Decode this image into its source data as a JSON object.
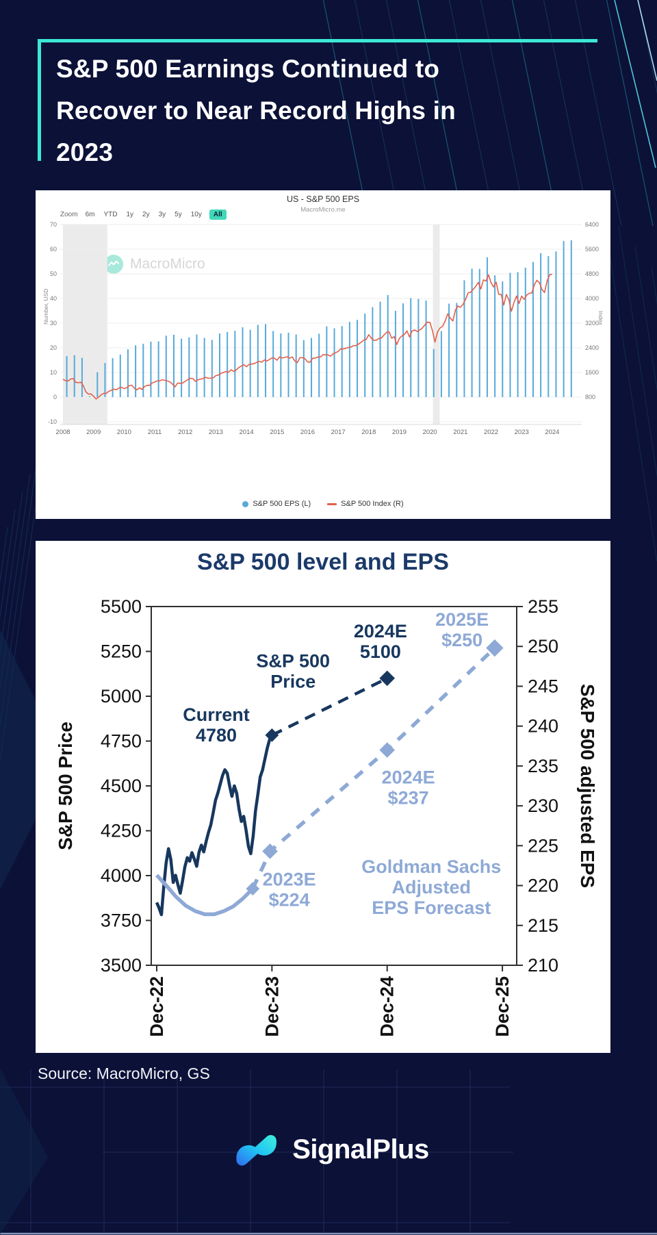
{
  "page": {
    "title_lines": [
      "S&P 500 Earnings Continued to",
      "Recover to Near Record Highs in",
      "2023"
    ],
    "brand": "SignalPlus"
  },
  "footer": {
    "source": "Source: MacroMicro, GS"
  },
  "colors": {
    "background": "#0c1138",
    "accent_teal": "#3ce8d4",
    "panel": "#ffffff",
    "bar_blue": "#57a9da",
    "line_red": "#e2604c",
    "navy": "#17375e",
    "light_blue": "#8ea9d6",
    "recession_band": "#ebebeb",
    "gridline": "#ececec"
  },
  "chart_data": [
    {
      "type": "bar+line",
      "title": "US - S&P 500 EPS",
      "subtitle": "MacroMicro.me",
      "watermark": "MacroMicro",
      "toolbar": {
        "label": "Zoom",
        "items": [
          "6m",
          "YTD",
          "1y",
          "2y",
          "3y",
          "5y",
          "10y",
          "All"
        ],
        "active": "All"
      },
      "left_axis": {
        "title": "Number, USD",
        "ticks": [
          70,
          60,
          50,
          40,
          30,
          20,
          10,
          0,
          -10
        ]
      },
      "right_axis": {
        "title": "Index",
        "ticks": [
          6400,
          5600,
          4800,
          4000,
          3200,
          2400,
          1600,
          800
        ]
      },
      "x_axis": {
        "years": [
          2008,
          2009,
          2010,
          2011,
          2012,
          2013,
          2014,
          2015,
          2016,
          2017,
          2018,
          2019,
          2020,
          2021,
          2022,
          2023,
          2024
        ]
      },
      "recession_bands": [
        [
          2008.0,
          2009.45
        ],
        [
          2020.1,
          2020.32
        ]
      ],
      "series": [
        {
          "name": "S&P 500 EPS (L)",
          "type": "bar",
          "axis": "left",
          "start_year": 2008.125,
          "step_years": 0.25,
          "values": [
            16.6,
            17.0,
            15.9,
            0.3,
            10.1,
            13.8,
            15.8,
            17.2,
            19.4,
            21.0,
            21.6,
            22.5,
            22.6,
            24.9,
            25.3,
            23.7,
            24.2,
            25.4,
            24.0,
            23.2,
            25.8,
            26.4,
            26.9,
            28.3,
            27.3,
            29.3,
            29.6,
            26.8,
            25.8,
            26.1,
            25.4,
            23.1,
            24.0,
            25.7,
            28.7,
            27.9,
            28.8,
            30.5,
            31.3,
            33.9,
            36.5,
            38.7,
            41.4,
            35.0,
            38.0,
            40.1,
            39.8,
            39.2,
            19.5,
            26.8,
            37.9,
            38.2,
            47.4,
            52.1,
            52.0,
            56.7,
            49.4,
            46.9,
            50.4,
            50.7,
            52.5,
            54.8,
            58.4,
            57.2,
            59.1,
            63.3,
            63.6
          ]
        },
        {
          "name": "S&P 500 Index (R)",
          "type": "line",
          "axis": "right",
          "start_year": 2008.0,
          "step_years": 0.08333,
          "values": [
            1379,
            1331,
            1323,
            1386,
            1400,
            1280,
            1267,
            1283,
            1166,
            969,
            896,
            903,
            826,
            735,
            798,
            873,
            919,
            919,
            987,
            1021,
            1057,
            1036,
            1096,
            1115,
            1074,
            1104,
            1169,
            1187,
            1089,
            1031,
            1102,
            1049,
            1141,
            1183,
            1181,
            1258,
            1286,
            1327,
            1326,
            1364,
            1345,
            1321,
            1292,
            1219,
            1131,
            1253,
            1247,
            1258,
            1312,
            1366,
            1408,
            1398,
            1310,
            1362,
            1379,
            1407,
            1441,
            1412,
            1416,
            1426,
            1498,
            1515,
            1569,
            1598,
            1631,
            1606,
            1686,
            1633,
            1682,
            1757,
            1806,
            1848,
            1783,
            1859,
            1872,
            1884,
            1924,
            1960,
            1931,
            2003,
            1972,
            2018,
            2068,
            2059,
            1995,
            2105,
            2068,
            2086,
            2107,
            2063,
            2104,
            1972,
            1920,
            2079,
            2080,
            2044,
            1940,
            1932,
            2060,
            2065,
            2097,
            2099,
            2174,
            2171,
            2168,
            2126,
            2199,
            2239,
            2279,
            2364,
            2363,
            2384,
            2412,
            2423,
            2470,
            2472,
            2519,
            2575,
            2648,
            2674,
            2824,
            2714,
            2641,
            2648,
            2705,
            2718,
            2816,
            2902,
            2914,
            2712,
            2760,
            2507,
            2704,
            2784,
            2834,
            2946,
            2752,
            2942,
            2980,
            2926,
            2977,
            3038,
            3141,
            3231,
            3226,
            2954,
            2585,
            2912,
            3044,
            3100,
            3271,
            3500,
            3363,
            3270,
            3622,
            3756,
            3714,
            3811,
            3973,
            4181,
            4204,
            4298,
            4395,
            4523,
            4308,
            4605,
            4567,
            4766,
            4516,
            4374,
            4530,
            4132,
            4132,
            3785,
            4130,
            3955,
            3586,
            3872,
            4080,
            3840,
            4077,
            3970,
            4109,
            4169,
            4180,
            4450,
            4589,
            4508,
            4288,
            4194,
            4568,
            4770,
            4790
          ]
        }
      ]
    },
    {
      "type": "line",
      "title": "S&P 500 level and EPS",
      "left_axis": {
        "title": "S&P 500 Price",
        "min": 3500,
        "max": 5500,
        "ticks": [
          5500,
          5250,
          5000,
          4750,
          4500,
          4250,
          4000,
          3750,
          3500
        ]
      },
      "right_axis": {
        "title": "S&P 500 adjusted EPS",
        "min": 210,
        "max": 255,
        "ticks": [
          255,
          250,
          245,
          240,
          235,
          230,
          225,
          220,
          215,
          210
        ]
      },
      "x_axis": {
        "labels": [
          "Dec-22",
          "Dec-23",
          "Dec-24",
          "Dec-25"
        ],
        "months": [
          0,
          12,
          24,
          36
        ]
      },
      "series": [
        {
          "name": "S&P 500 Price (actual)",
          "axis": "price",
          "style": "solid",
          "color_key": "navy",
          "t_start": 0,
          "t_end": 12,
          "values": [
            3850,
            3820,
            3782,
            3938,
            4070,
            4150,
            4090,
            3962,
            4002,
            3950,
            3902,
            3972,
            4050,
            4100,
            4080,
            4128,
            4092,
            4052,
            4130,
            4170,
            4132,
            4190,
            4240,
            4282,
            4350,
            4420,
            4460,
            4510,
            4558,
            4590,
            4570,
            4500,
            4442,
            4500,
            4460,
            4370,
            4302,
            4330,
            4252,
            4163,
            4122,
            4220,
            4360,
            4450,
            4550,
            4588,
            4650,
            4710,
            4758,
            4783
          ]
        },
        {
          "name": "S&P 500 Price (forecast)",
          "axis": "price",
          "style": "dashed",
          "color_key": "navy",
          "points": [
            [
              12,
              4783
            ],
            [
              24,
              5100
            ]
          ]
        },
        {
          "name": "GS Adjusted EPS (actual)",
          "axis": "eps",
          "style": "solid",
          "color_key": "light_blue",
          "points": [
            [
              0,
              221.3
            ],
            [
              1,
              220.0
            ],
            [
              2,
              218.6
            ],
            [
              3,
              217.5
            ],
            [
              4,
              216.8
            ],
            [
              5,
              216.4
            ],
            [
              6,
              216.4
            ],
            [
              7,
              216.8
            ],
            [
              8,
              217.4
            ],
            [
              9,
              218.4
            ],
            [
              10,
              219.6
            ]
          ]
        },
        {
          "name": "GS Adjusted EPS (forecast)",
          "axis": "eps",
          "style": "dashed",
          "color_key": "light_blue",
          "points": [
            [
              10,
              219.6
            ],
            [
              11.8,
              224.3
            ],
            [
              24,
              237
            ],
            [
              35.2,
              249.8
            ]
          ]
        }
      ],
      "markers": [
        {
          "axis": "price",
          "t": 12,
          "v": 4783,
          "size": 7,
          "color_key": "navy"
        },
        {
          "axis": "price",
          "t": 24,
          "v": 5100,
          "size": 8,
          "color_key": "navy"
        },
        {
          "axis": "eps",
          "t": 10,
          "v": 219.6,
          "size": 7,
          "color_key": "light_blue"
        },
        {
          "axis": "eps",
          "t": 11.8,
          "v": 224.3,
          "size": 8,
          "color_key": "light_blue"
        },
        {
          "axis": "eps",
          "t": 24,
          "v": 237,
          "size": 8,
          "color_key": "light_blue"
        },
        {
          "axis": "eps",
          "t": 35.2,
          "v": 249.8,
          "size": 9,
          "color_key": "light_blue"
        }
      ],
      "annotations": [
        {
          "lines": [
            "S&P 500",
            "Price"
          ],
          "axis": "price",
          "t": 14.2,
          "v": 5140,
          "color_key": "navy"
        },
        {
          "lines": [
            "2024E",
            "5100"
          ],
          "axis": "price",
          "t": 23.3,
          "v": 5305,
          "color_key": "navy"
        },
        {
          "lines": [
            "Current",
            "4780"
          ],
          "axis": "price",
          "t": 6.2,
          "v": 4840,
          "color_key": "navy"
        },
        {
          "lines": [
            "2025E",
            "$250"
          ],
          "axis": "eps",
          "t": 31.8,
          "v": 252.1,
          "color_key": "light_blue"
        },
        {
          "lines": [
            "2024E",
            "$237"
          ],
          "axis": "eps",
          "t": 26.2,
          "v": 232.3,
          "color_key": "light_blue"
        },
        {
          "lines": [
            "2023E",
            "$224"
          ],
          "axis": "eps",
          "t": 13.8,
          "v": 219.5,
          "color_key": "light_blue"
        },
        {
          "lines": [
            "Goldman Sachs",
            "Adjusted",
            "EPS Forecast"
          ],
          "axis": "eps",
          "t": 28.6,
          "v": 219.8,
          "color_key": "light_blue"
        }
      ]
    }
  ]
}
